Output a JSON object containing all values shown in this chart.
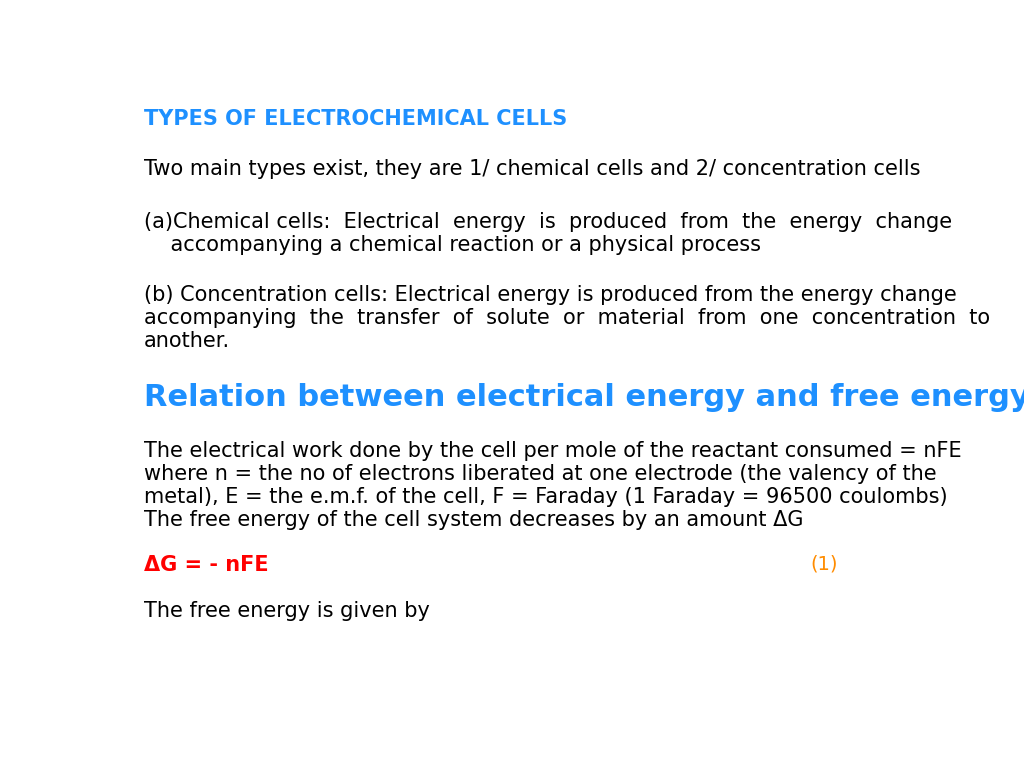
{
  "bg_color": "#ffffff",
  "title": "TYPES OF ELECTROCHEMICAL CELLS",
  "title_color": "#1E90FF",
  "title_fontsize": 15,
  "line1": "Two main types exist, they are 1/ chemical cells and 2/ concentration cells",
  "line1_color": "#000000",
  "line1_fontsize": 15,
  "para_a_line1": "(a)Chemical cells:  Electrical  energy  is  produced  from  the  energy  change",
  "para_a_line2": "    accompanying a chemical reaction or a physical process",
  "para_a_color": "#000000",
  "para_a_fontsize": 15,
  "para_b_line1": "(b) Concentration cells: Electrical energy is produced from the energy change",
  "para_b_line2": "accompanying  the  transfer  of  solute  or  material  from  one  concentration  to",
  "para_b_line3": "another.",
  "para_b_color": "#000000",
  "para_b_fontsize": 15,
  "section_title": "Relation between electrical energy and free energy",
  "section_title_color": "#1E90FF",
  "section_title_fontsize": 22,
  "body_line1": "The electrical work done by the cell per mole of the reactant consumed = nFE",
  "body_line2": "where n = the no of electrons liberated at one electrode (the valency of the",
  "body_line3": "metal), E = the e.m.f. of the cell, F = Faraday (1 Faraday = 96500 coulombs)",
  "body_line4": "The free energy of the cell system decreases by an amount ΔG",
  "body_color": "#000000",
  "body_fontsize": 15,
  "equation": "ΔG = - nFE",
  "equation_color": "#FF0000",
  "equation_fontsize": 15,
  "equation_number": "(1)",
  "equation_number_color": "#FF8C00",
  "equation_number_fontsize": 14,
  "last_line": "The free energy is given by",
  "last_line_color": "#000000",
  "last_line_fontsize": 15
}
